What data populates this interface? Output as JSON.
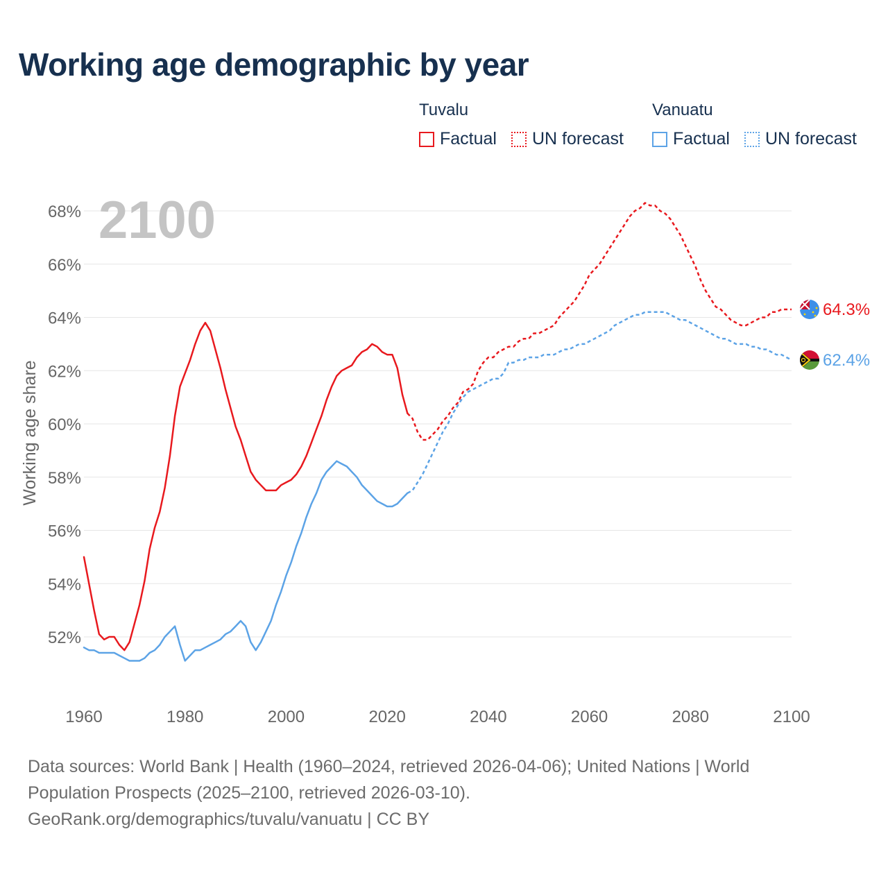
{
  "title": "Working age demographic by year",
  "legend": {
    "groups": [
      {
        "name": "Tuvalu",
        "color": "#e8191e",
        "factual_label": "Factual",
        "forecast_label": "UN forecast"
      },
      {
        "name": "Vanuatu",
        "color": "#5ca3e6",
        "factual_label": "Factual",
        "forecast_label": "UN forecast"
      }
    ]
  },
  "sources": {
    "line1": "Data sources: World Bank | Health (1960–2024, retrieved 2026-04-06); United Nations | World",
    "line2": "Population Prospects (2025–2100, retrieved 2026-03-10).",
    "line3": "GeoRank.org/demographics/tuvalu/vanuatu | CC BY"
  },
  "chart_data": {
    "type": "line",
    "title": "Working age demographic by year",
    "year_label": "2100",
    "xlabel": "",
    "ylabel": "Working age share",
    "xlim": [
      1960,
      2100
    ],
    "ylim": [
      50,
      69.5
    ],
    "x_ticks": [
      1960,
      1980,
      2000,
      2020,
      2040,
      2060,
      2080,
      2100
    ],
    "y_ticks": [
      52,
      54,
      56,
      58,
      60,
      62,
      64,
      66,
      68
    ],
    "y_tick_labels": [
      "52%",
      "54%",
      "56%",
      "58%",
      "60%",
      "62%",
      "64%",
      "66%",
      "68%"
    ],
    "grid": true,
    "factual_range": [
      1960,
      2024
    ],
    "forecast_range": [
      2024,
      2100
    ],
    "series": [
      {
        "name": "Tuvalu",
        "color": "#e8191e",
        "end_label": "64.3%",
        "points": [
          [
            1960,
            55.0
          ],
          [
            1961,
            54.0
          ],
          [
            1962,
            53.0
          ],
          [
            1963,
            52.1
          ],
          [
            1964,
            51.9
          ],
          [
            1965,
            52.0
          ],
          [
            1966,
            52.0
          ],
          [
            1967,
            51.7
          ],
          [
            1968,
            51.5
          ],
          [
            1969,
            51.8
          ],
          [
            1970,
            52.5
          ],
          [
            1971,
            53.2
          ],
          [
            1972,
            54.1
          ],
          [
            1973,
            55.3
          ],
          [
            1974,
            56.1
          ],
          [
            1975,
            56.7
          ],
          [
            1976,
            57.6
          ],
          [
            1977,
            58.8
          ],
          [
            1978,
            60.3
          ],
          [
            1979,
            61.4
          ],
          [
            1980,
            61.9
          ],
          [
            1981,
            62.4
          ],
          [
            1982,
            63.0
          ],
          [
            1983,
            63.5
          ],
          [
            1984,
            63.8
          ],
          [
            1985,
            63.5
          ],
          [
            1986,
            62.8
          ],
          [
            1987,
            62.1
          ],
          [
            1988,
            61.3
          ],
          [
            1989,
            60.6
          ],
          [
            1990,
            59.9
          ],
          [
            1991,
            59.4
          ],
          [
            1992,
            58.8
          ],
          [
            1993,
            58.2
          ],
          [
            1994,
            57.9
          ],
          [
            1995,
            57.7
          ],
          [
            1996,
            57.5
          ],
          [
            1997,
            57.5
          ],
          [
            1998,
            57.5
          ],
          [
            1999,
            57.7
          ],
          [
            2000,
            57.8
          ],
          [
            2001,
            57.9
          ],
          [
            2002,
            58.1
          ],
          [
            2003,
            58.4
          ],
          [
            2004,
            58.8
          ],
          [
            2005,
            59.3
          ],
          [
            2006,
            59.8
          ],
          [
            2007,
            60.3
          ],
          [
            2008,
            60.9
          ],
          [
            2009,
            61.4
          ],
          [
            2010,
            61.8
          ],
          [
            2011,
            62.0
          ],
          [
            2012,
            62.1
          ],
          [
            2013,
            62.2
          ],
          [
            2014,
            62.5
          ],
          [
            2015,
            62.7
          ],
          [
            2016,
            62.8
          ],
          [
            2017,
            63.0
          ],
          [
            2018,
            62.9
          ],
          [
            2019,
            62.7
          ],
          [
            2020,
            62.6
          ],
          [
            2021,
            62.6
          ],
          [
            2022,
            62.1
          ],
          [
            2023,
            61.1
          ],
          [
            2024,
            60.4
          ],
          [
            2025,
            60.2
          ],
          [
            2026,
            59.7
          ],
          [
            2027,
            59.4
          ],
          [
            2028,
            59.4
          ],
          [
            2029,
            59.6
          ],
          [
            2030,
            59.8
          ],
          [
            2031,
            60.1
          ],
          [
            2032,
            60.3
          ],
          [
            2033,
            60.6
          ],
          [
            2034,
            60.8
          ],
          [
            2035,
            61.2
          ],
          [
            2036,
            61.3
          ],
          [
            2037,
            61.5
          ],
          [
            2038,
            62.0
          ],
          [
            2039,
            62.3
          ],
          [
            2040,
            62.5
          ],
          [
            2041,
            62.5
          ],
          [
            2042,
            62.7
          ],
          [
            2043,
            62.8
          ],
          [
            2044,
            62.9
          ],
          [
            2045,
            62.9
          ],
          [
            2046,
            63.1
          ],
          [
            2047,
            63.2
          ],
          [
            2048,
            63.2
          ],
          [
            2049,
            63.4
          ],
          [
            2050,
            63.4
          ],
          [
            2051,
            63.5
          ],
          [
            2052,
            63.6
          ],
          [
            2053,
            63.7
          ],
          [
            2054,
            64.0
          ],
          [
            2055,
            64.2
          ],
          [
            2056,
            64.4
          ],
          [
            2057,
            64.6
          ],
          [
            2058,
            64.9
          ],
          [
            2059,
            65.2
          ],
          [
            2060,
            65.6
          ],
          [
            2061,
            65.8
          ],
          [
            2062,
            66.0
          ],
          [
            2063,
            66.3
          ],
          [
            2064,
            66.6
          ],
          [
            2065,
            66.9
          ],
          [
            2066,
            67.2
          ],
          [
            2067,
            67.5
          ],
          [
            2068,
            67.8
          ],
          [
            2069,
            68.0
          ],
          [
            2070,
            68.1
          ],
          [
            2071,
            68.3
          ],
          [
            2072,
            68.2
          ],
          [
            2073,
            68.2
          ],
          [
            2074,
            68.0
          ],
          [
            2075,
            67.9
          ],
          [
            2076,
            67.7
          ],
          [
            2077,
            67.4
          ],
          [
            2078,
            67.1
          ],
          [
            2079,
            66.7
          ],
          [
            2080,
            66.3
          ],
          [
            2081,
            65.9
          ],
          [
            2082,
            65.4
          ],
          [
            2083,
            65.0
          ],
          [
            2084,
            64.7
          ],
          [
            2085,
            64.4
          ],
          [
            2086,
            64.3
          ],
          [
            2087,
            64.1
          ],
          [
            2088,
            63.9
          ],
          [
            2089,
            63.8
          ],
          [
            2090,
            63.7
          ],
          [
            2091,
            63.7
          ],
          [
            2092,
            63.8
          ],
          [
            2093,
            63.9
          ],
          [
            2094,
            64.0
          ],
          [
            2095,
            64.0
          ],
          [
            2096,
            64.2
          ],
          [
            2097,
            64.2
          ],
          [
            2098,
            64.3
          ],
          [
            2099,
            64.3
          ],
          [
            2100,
            64.3
          ]
        ]
      },
      {
        "name": "Vanuatu",
        "color": "#5ca3e6",
        "end_label": "62.4%",
        "points": [
          [
            1960,
            51.6
          ],
          [
            1961,
            51.5
          ],
          [
            1962,
            51.5
          ],
          [
            1963,
            51.4
          ],
          [
            1964,
            51.4
          ],
          [
            1965,
            51.4
          ],
          [
            1966,
            51.4
          ],
          [
            1967,
            51.3
          ],
          [
            1968,
            51.2
          ],
          [
            1969,
            51.1
          ],
          [
            1970,
            51.1
          ],
          [
            1971,
            51.1
          ],
          [
            1972,
            51.2
          ],
          [
            1973,
            51.4
          ],
          [
            1974,
            51.5
          ],
          [
            1975,
            51.7
          ],
          [
            1976,
            52.0
          ],
          [
            1977,
            52.2
          ],
          [
            1978,
            52.4
          ],
          [
            1979,
            51.7
          ],
          [
            1980,
            51.1
          ],
          [
            1981,
            51.3
          ],
          [
            1982,
            51.5
          ],
          [
            1983,
            51.5
          ],
          [
            1984,
            51.6
          ],
          [
            1985,
            51.7
          ],
          [
            1986,
            51.8
          ],
          [
            1987,
            51.9
          ],
          [
            1988,
            52.1
          ],
          [
            1989,
            52.2
          ],
          [
            1990,
            52.4
          ],
          [
            1991,
            52.6
          ],
          [
            1992,
            52.4
          ],
          [
            1993,
            51.8
          ],
          [
            1994,
            51.5
          ],
          [
            1995,
            51.8
          ],
          [
            1996,
            52.2
          ],
          [
            1997,
            52.6
          ],
          [
            1998,
            53.2
          ],
          [
            1999,
            53.7
          ],
          [
            2000,
            54.3
          ],
          [
            2001,
            54.8
          ],
          [
            2002,
            55.4
          ],
          [
            2003,
            55.9
          ],
          [
            2004,
            56.5
          ],
          [
            2005,
            57.0
          ],
          [
            2006,
            57.4
          ],
          [
            2007,
            57.9
          ],
          [
            2008,
            58.2
          ],
          [
            2009,
            58.4
          ],
          [
            2010,
            58.6
          ],
          [
            2011,
            58.5
          ],
          [
            2012,
            58.4
          ],
          [
            2013,
            58.2
          ],
          [
            2014,
            58.0
          ],
          [
            2015,
            57.7
          ],
          [
            2016,
            57.5
          ],
          [
            2017,
            57.3
          ],
          [
            2018,
            57.1
          ],
          [
            2019,
            57.0
          ],
          [
            2020,
            56.9
          ],
          [
            2021,
            56.9
          ],
          [
            2022,
            57.0
          ],
          [
            2023,
            57.2
          ],
          [
            2024,
            57.4
          ],
          [
            2025,
            57.5
          ],
          [
            2026,
            57.8
          ],
          [
            2027,
            58.1
          ],
          [
            2028,
            58.5
          ],
          [
            2029,
            58.9
          ],
          [
            2030,
            59.3
          ],
          [
            2031,
            59.7
          ],
          [
            2032,
            60.0
          ],
          [
            2033,
            60.4
          ],
          [
            2034,
            60.7
          ],
          [
            2035,
            61.0
          ],
          [
            2036,
            61.2
          ],
          [
            2037,
            61.3
          ],
          [
            2038,
            61.4
          ],
          [
            2039,
            61.5
          ],
          [
            2040,
            61.6
          ],
          [
            2041,
            61.7
          ],
          [
            2042,
            61.7
          ],
          [
            2043,
            61.9
          ],
          [
            2044,
            62.3
          ],
          [
            2045,
            62.3
          ],
          [
            2046,
            62.4
          ],
          [
            2047,
            62.4
          ],
          [
            2048,
            62.5
          ],
          [
            2049,
            62.5
          ],
          [
            2050,
            62.5
          ],
          [
            2051,
            62.6
          ],
          [
            2052,
            62.6
          ],
          [
            2053,
            62.6
          ],
          [
            2054,
            62.7
          ],
          [
            2055,
            62.8
          ],
          [
            2056,
            62.8
          ],
          [
            2057,
            62.9
          ],
          [
            2058,
            63.0
          ],
          [
            2059,
            63.0
          ],
          [
            2060,
            63.1
          ],
          [
            2061,
            63.2
          ],
          [
            2062,
            63.3
          ],
          [
            2063,
            63.4
          ],
          [
            2064,
            63.5
          ],
          [
            2065,
            63.7
          ],
          [
            2066,
            63.8
          ],
          [
            2067,
            63.9
          ],
          [
            2068,
            64.0
          ],
          [
            2069,
            64.1
          ],
          [
            2070,
            64.1
          ],
          [
            2071,
            64.2
          ],
          [
            2072,
            64.2
          ],
          [
            2073,
            64.2
          ],
          [
            2074,
            64.2
          ],
          [
            2075,
            64.2
          ],
          [
            2076,
            64.1
          ],
          [
            2077,
            64.0
          ],
          [
            2078,
            63.9
          ],
          [
            2079,
            63.9
          ],
          [
            2080,
            63.8
          ],
          [
            2081,
            63.7
          ],
          [
            2082,
            63.6
          ],
          [
            2083,
            63.5
          ],
          [
            2084,
            63.4
          ],
          [
            2085,
            63.3
          ],
          [
            2086,
            63.2
          ],
          [
            2087,
            63.2
          ],
          [
            2088,
            63.1
          ],
          [
            2089,
            63.0
          ],
          [
            2090,
            63.0
          ],
          [
            2091,
            63.0
          ],
          [
            2092,
            62.9
          ],
          [
            2093,
            62.9
          ],
          [
            2094,
            62.8
          ],
          [
            2095,
            62.8
          ],
          [
            2096,
            62.7
          ],
          [
            2097,
            62.6
          ],
          [
            2098,
            62.6
          ],
          [
            2099,
            62.5
          ],
          [
            2100,
            62.4
          ]
        ]
      }
    ]
  }
}
